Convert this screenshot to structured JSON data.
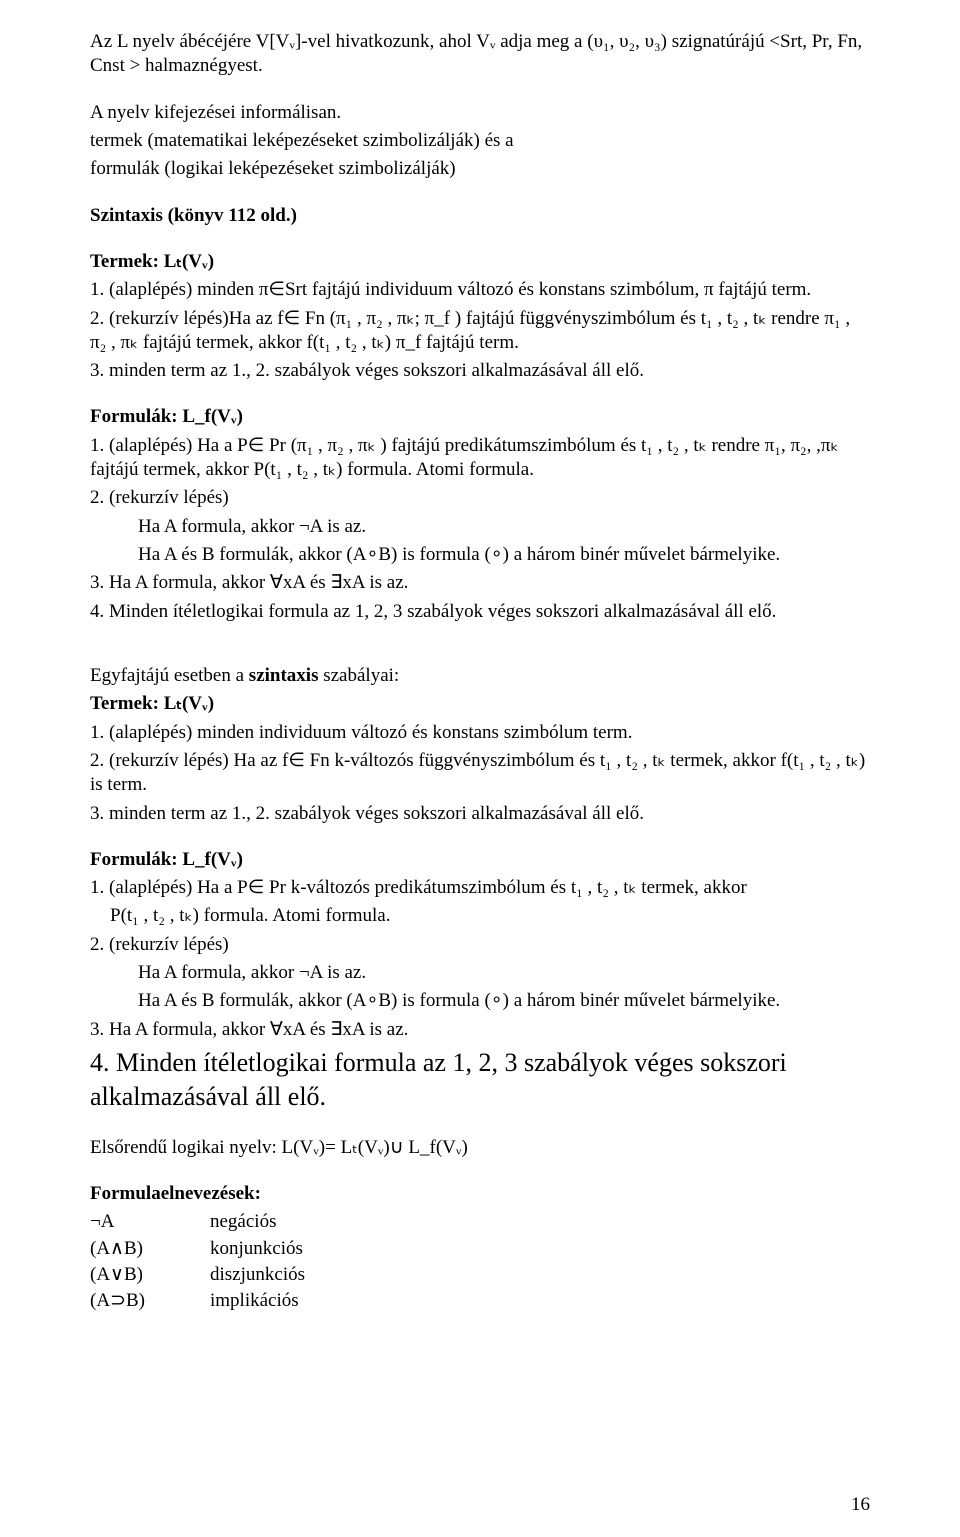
{
  "p01": "Az L nyelv ábécéjére V[Vᵥ]-vel hivatkozunk, ahol Vᵥ adja meg a (υ₁, υ₂, υ₃) szignatúrájú <Srt, Pr, Fn, Cnst > halmaznégyest.",
  "gap1": "",
  "p02": "A nyelv kifejezései informálisan.",
  "p03": "termek (matematikai leképezéseket szimbolizálják) és a",
  "p04": "formulák (logikai leképezéseket szimbolizálják)",
  "gap2": "",
  "p05": "Szintaxis (könyv 112 old.)",
  "gap3": "",
  "p06": "Termek: Lₜ(Vᵥ)",
  "p07": "1. (alaplépés) minden π∈Srt fajtájú individuum változó és konstans szimbólum, π fajtájú term.",
  "p08": "2. (rekurzív lépés)Ha az f∈ Fn (π₁ , π₂ ,   πₖ; π_f ) fajtájú függvényszimbólum és t₁ , t₂ ,   tₖ rendre π₁ , π₂ ,   πₖ fajtájú termek, akkor f(t₁ , t₂ ,   tₖ) π_f fajtájú term.",
  "p09": "3. minden term az 1., 2. szabályok véges sokszori alkalmazásával áll elő.",
  "gap4": "",
  "p10": "Formulák: L_f(Vᵥ)",
  "p11": "1. (alaplépés) Ha a P∈ Pr (π₁ , π₂ ,   πₖ ) fajtájú predikátumszimbólum és t₁ , t₂ ,   tₖ rendre π₁, π₂,  ,πₖ fajtájú termek, akkor P(t₁ , t₂ ,   tₖ) formula. Atomi formula.",
  "p12": "2. (rekurzív lépés)",
  "p13": "Ha A formula, akkor ¬A is az.",
  "p14": "Ha A és B formulák, akkor (A∘B) is formula (∘) a három binér művelet bármelyike.",
  "p15": "3. Ha A formula, akkor ∀xA és ∃xA is az.",
  "p16": "4. Minden ítéletlogikai formula az 1, 2, 3 szabályok véges sokszori alkalmazásával áll elő.",
  "gap5": "",
  "p17": "Egyfajtájú esetben a szintaxis szabályai:",
  "p18": "Termek: Lₜ(Vᵥ)",
  "p19": "1. (alaplépés)  minden individuum változó és konstans szimbólum term.",
  "p20": "2. (rekurzív lépés) Ha az f∈ Fn k-változós függvényszimbólum és t₁ , t₂ ,   tₖ termek, akkor f(t₁ , t₂ ,   tₖ) is term.",
  "p21": "3. minden term az 1., 2. szabályok véges sokszori alkalmazásával áll elő.",
  "gap6": "",
  "p22": "Formulák: L_f(Vᵥ)",
  "p23": "1. (alaplépés) Ha a P∈ Pr k-változós predikátumszimbólum és t₁ , t₂ ,   tₖ termek, akkor",
  "p23b": "P(t₁ , t₂ ,   tₖ) formula. Atomi formula.",
  "p24": "2. (rekurzív lépés)",
  "p25": "Ha A formula, akkor ¬A is az.",
  "p26": "Ha A és B formulák, akkor (A∘B) is formula (∘) a három binér művelet bármelyike.",
  "p27": "3. Ha A formula, akkor ∀xA és ∃xA is az.",
  "p28": "4. Minden ítéletlogikai formula az 1, 2, 3 szabályok véges sokszori alkalmazásával áll elő.",
  "gap7": "",
  "p29": "Elsőrendű logikai nyelv: L(Vᵥ)= Lₜ(Vᵥ)∪ L_f(Vᵥ)",
  "gap8": "",
  "p30": "Formulaelnevezések:",
  "defs": [
    [
      "¬A",
      "negációs"
    ],
    [
      "(A∧B)",
      "konjunkciós"
    ],
    [
      "(A∨B)",
      "diszjunkciós"
    ],
    [
      "(A⊃B)",
      "implikációs"
    ]
  ],
  "pagenum": "16"
}
